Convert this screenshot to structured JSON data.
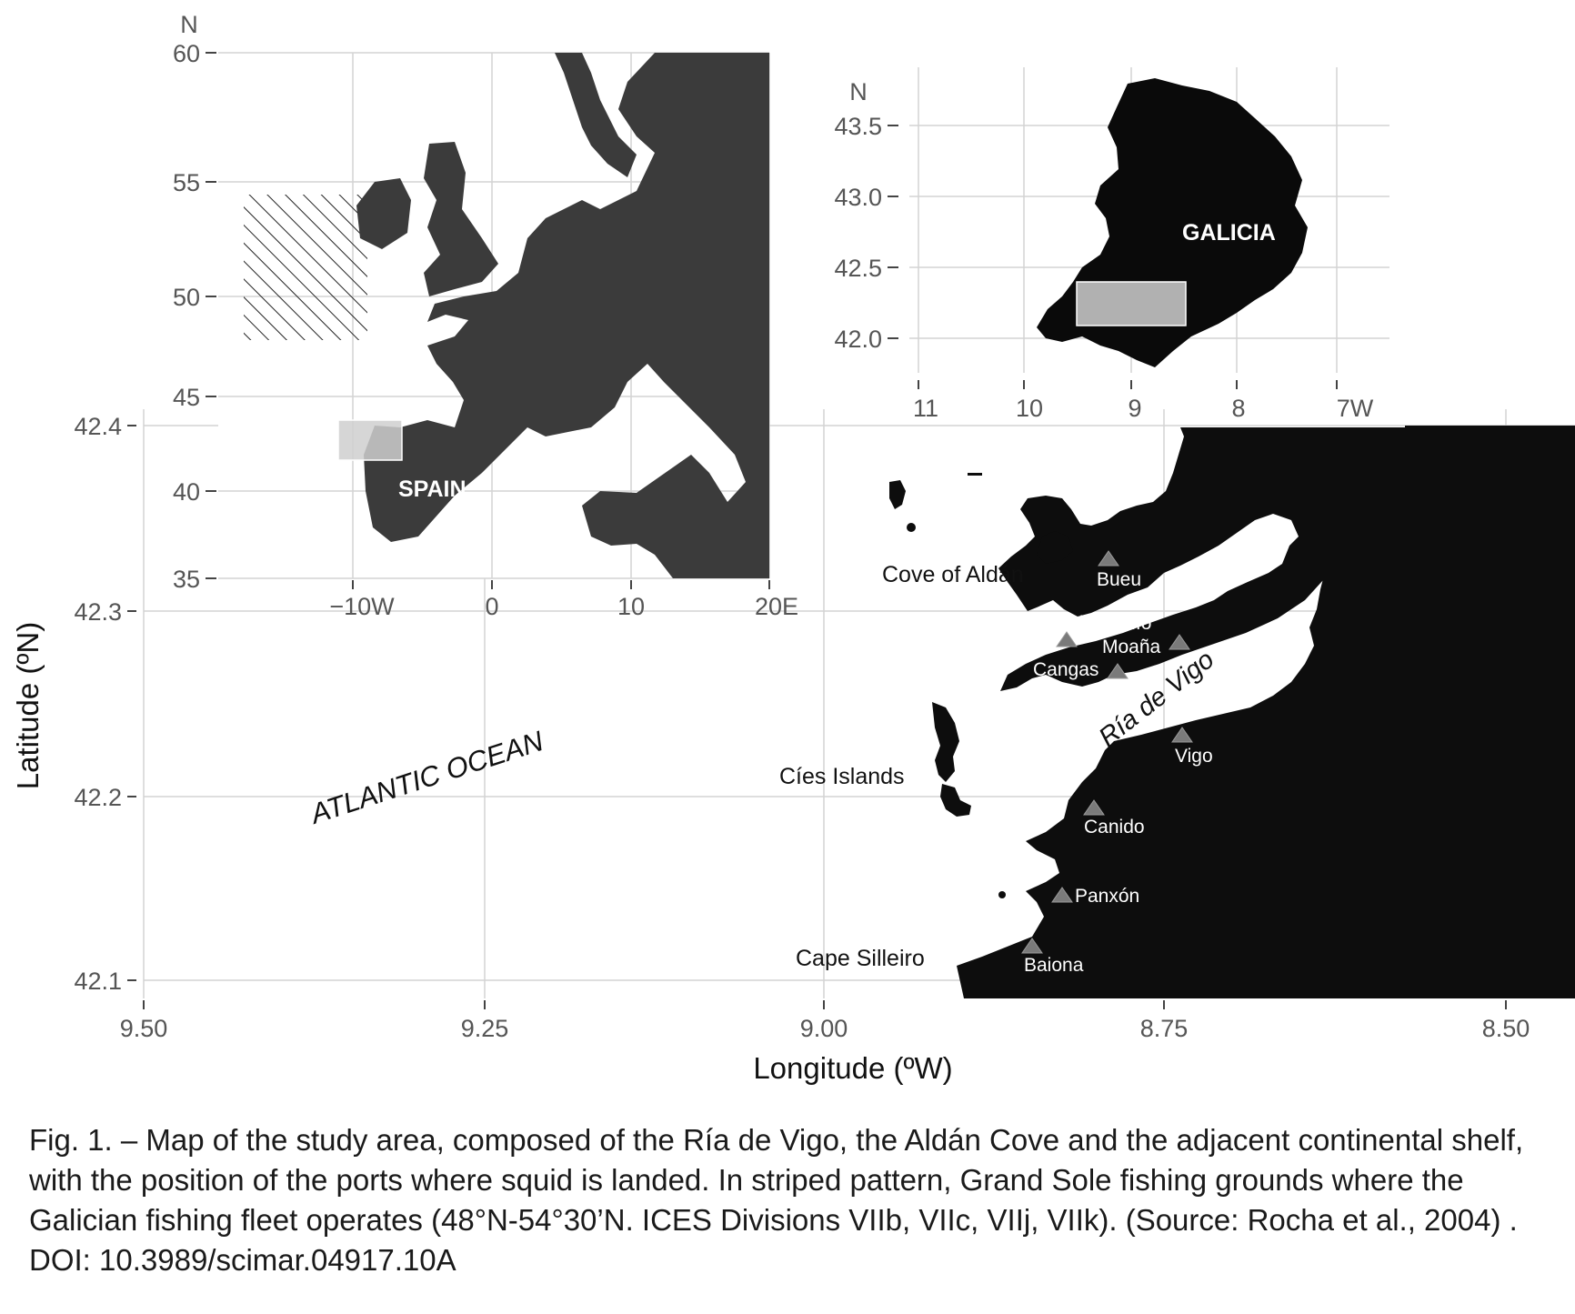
{
  "main_map": {
    "x_ticks": [
      "9.50",
      "9.25",
      "9.00",
      "8.75",
      "8.50"
    ],
    "y_ticks": [
      "42.4",
      "42.3",
      "42.2",
      "42.1"
    ],
    "xlabel": "Longitude (ºW)",
    "ylabel": "Latitude (ºN)",
    "ocean_label": "ATLANTIC OCEAN",
    "ria_label": "Ría de Vigo",
    "places": {
      "cove": "Cove of Aldán",
      "cies": "Cíes Islands",
      "cape": "Cape Silleiro"
    },
    "ports": [
      "Bueu",
      "Aldán-Hío",
      "Moaña",
      "Cangas",
      "Vigo",
      "Canido",
      "Panxón",
      "Baiona"
    ],
    "land_color": "#0d0d0d",
    "port_marker_color": "#7a7a7a"
  },
  "europe_inset": {
    "north_label": "N",
    "y_ticks": [
      "60",
      "55",
      "50",
      "45",
      "40",
      "35"
    ],
    "x_ticks": [
      "−10W",
      "0",
      "10",
      "20E"
    ],
    "country_label": "SPAIN",
    "land_color": "#3b3b3b",
    "hatch_note": "striped pattern"
  },
  "galicia_inset": {
    "north_label": "N",
    "y_ticks": [
      "43.5",
      "43.0",
      "42.5",
      "42.0"
    ],
    "x_ticks": [
      "11",
      "10",
      "9",
      "8",
      "7W"
    ],
    "region_label": "GALICIA",
    "land_color": "#0a0a0a"
  },
  "caption": "Fig. 1. – Map of the study area, composed of the Ría de Vigo, the Aldán Cove and the adjacent continental shelf, with the position of the ports where squid is landed. In striped pattern, Grand Sole fishing grounds where the Galician fishing fleet operates (48°N-54°30’N. ICES Divisions VIIb, VIIc, VIIj, VIIk). (Source: Rocha et al., 2004) . DOI: 10.3989/scimar.04917.10A"
}
